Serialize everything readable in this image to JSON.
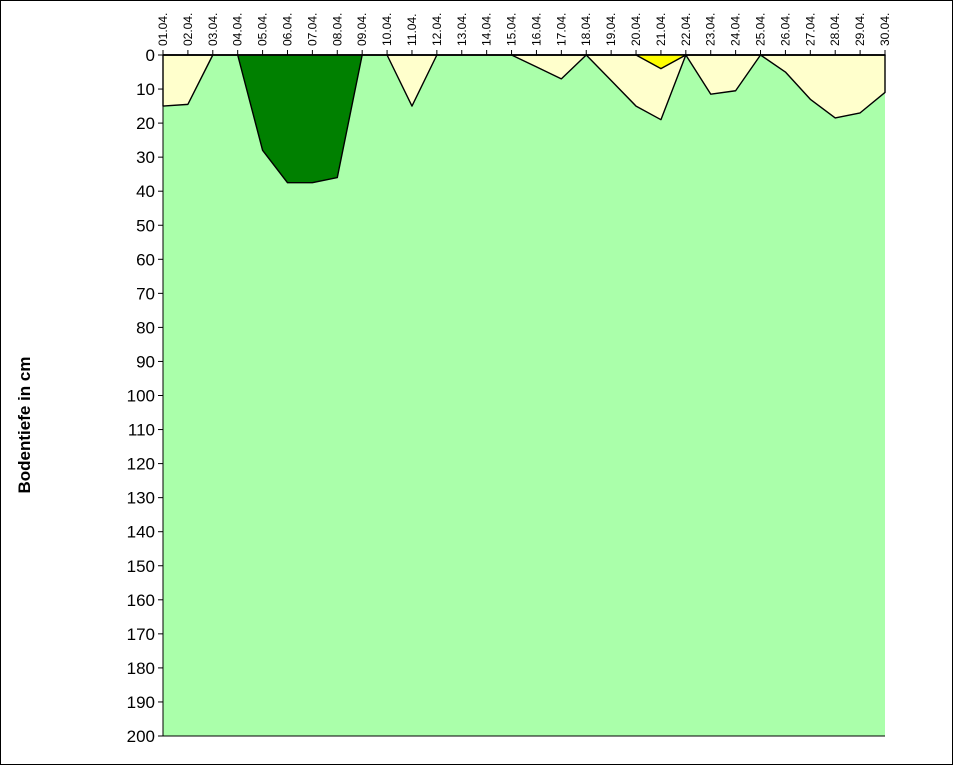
{
  "chart_data": {
    "type": "area",
    "orientation": "depth-downward",
    "ylabel": "Bodentiefe in cm",
    "ylim": [
      0,
      200
    ],
    "yticks": [
      0,
      10,
      20,
      30,
      40,
      50,
      60,
      70,
      80,
      90,
      100,
      110,
      120,
      130,
      140,
      150,
      160,
      170,
      180,
      190,
      200
    ],
    "x_axis_position": "top",
    "categories": [
      "01.04.",
      "02.04.",
      "03.04.",
      "04.04.",
      "05.04.",
      "06.04.",
      "07.04.",
      "08.04.",
      "09.04.",
      "10.04.",
      "11.04.",
      "12.04.",
      "13.04.",
      "14.04.",
      "15.04.",
      "16.04.",
      "17.04.",
      "18.04.",
      "19.04.",
      "20.04.",
      "21.04.",
      "22.04.",
      "23.04.",
      "24.04.",
      "25.04.",
      "26.04.",
      "27.04.",
      "28.04.",
      "29.04.",
      "30.04."
    ],
    "series": [
      {
        "color": "#ffffcc",
        "values": [
          15,
          14.5,
          0,
          0,
          0,
          0,
          0,
          0,
          0,
          0,
          15,
          0,
          0,
          0,
          0,
          3.5,
          7,
          0,
          7.5,
          15,
          19,
          0,
          11.5,
          10.5,
          0,
          5,
          13,
          18.5,
          17,
          11
        ]
      },
      {
        "color": "#008000",
        "values": [
          0,
          0,
          0,
          0,
          28,
          37.5,
          37.5,
          36,
          0,
          0,
          0,
          0,
          0,
          0,
          0,
          0,
          0,
          0,
          0,
          0,
          0,
          0,
          0,
          0,
          0,
          0,
          0,
          0,
          0,
          0
        ]
      },
      {
        "color": "#ffff00",
        "values": [
          0,
          0,
          0,
          0,
          0,
          0,
          0,
          0,
          0,
          0,
          0,
          0,
          0,
          0,
          0,
          0,
          0,
          0,
          0,
          0,
          4,
          0,
          0,
          0,
          0,
          0,
          0,
          0,
          0,
          0
        ]
      },
      {
        "color": "#aaffaa",
        "fill": "remainder"
      }
    ]
  }
}
